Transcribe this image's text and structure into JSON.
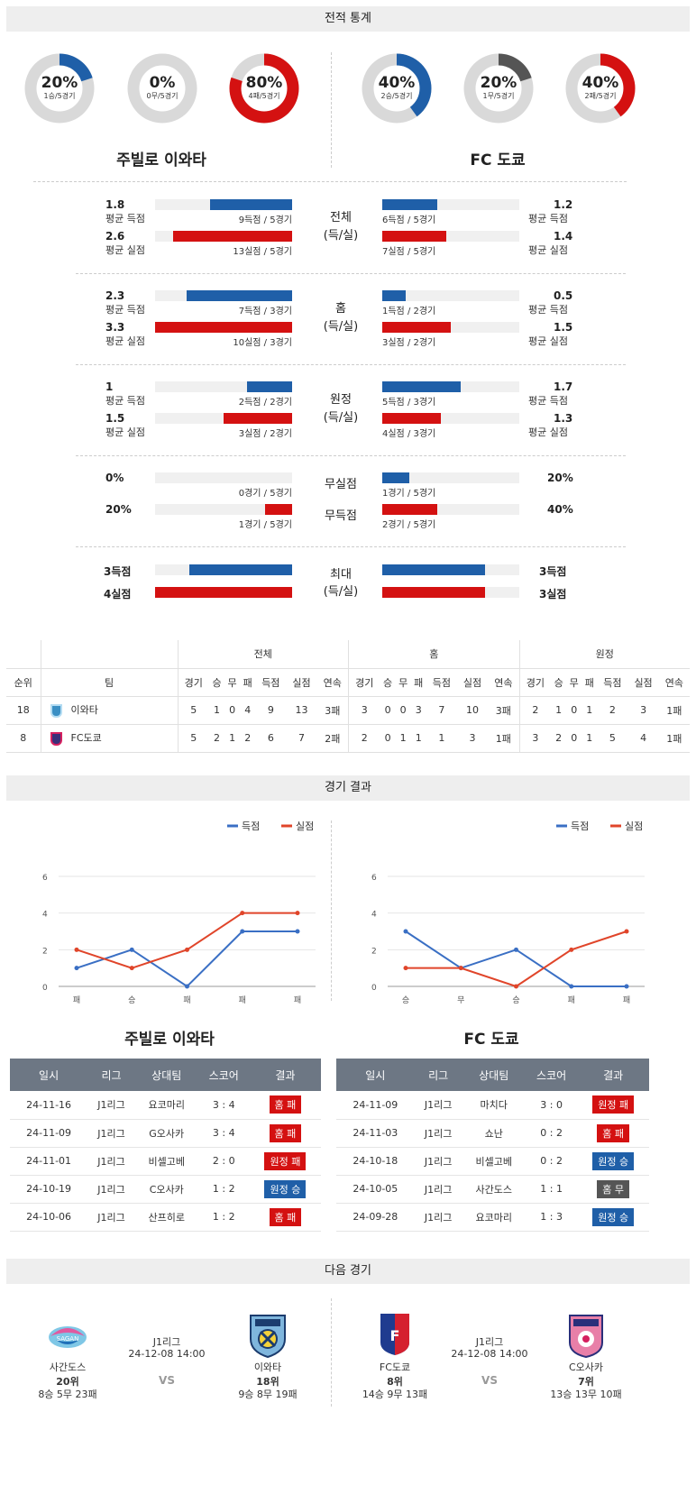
{
  "sections": {
    "record": "전적 통계",
    "results": "경기 결과",
    "next": "다음 경기"
  },
  "donuts": [
    {
      "pct": "20%",
      "sub": "1승/5경기",
      "value": 0.2,
      "color": "#1f5fa8"
    },
    {
      "pct": "0%",
      "sub": "0무/5경기",
      "value": 0.0,
      "color": "#555555"
    },
    {
      "pct": "80%",
      "sub": "4패/5경기",
      "value": 0.8,
      "color": "#d41111"
    },
    {
      "pct": "40%",
      "sub": "2승/5경기",
      "value": 0.4,
      "color": "#1f5fa8"
    },
    {
      "pct": "20%",
      "sub": "1무/5경기",
      "value": 0.2,
      "color": "#555555"
    },
    {
      "pct": "40%",
      "sub": "2패/5경기",
      "value": 0.4,
      "color": "#d41111"
    }
  ],
  "teams": {
    "left": "주빌로 이와타",
    "right": "FC 도쿄"
  },
  "stats": {
    "overall": {
      "label1": "전체",
      "label2": "(득/실)",
      "l_gf": "1.8",
      "l_gf_lbl": "평균 득점",
      "l_gf_cap": "9득점 / 5경기",
      "l_gf_v": 0.6,
      "l_ga": "2.6",
      "l_ga_lbl": "평균 실점",
      "l_ga_cap": "13실점 / 5경기",
      "l_ga_v": 0.87,
      "r_gf": "1.2",
      "r_gf_lbl": "평균 득점",
      "r_gf_cap": "6득점 / 5경기",
      "r_gf_v": 0.4,
      "r_ga": "1.4",
      "r_ga_lbl": "평균 실점",
      "r_ga_cap": "7실점 / 5경기",
      "r_ga_v": 0.47
    },
    "home": {
      "label1": "홈",
      "label2": "(득/실)",
      "l_gf": "2.3",
      "l_gf_lbl": "평균 득점",
      "l_gf_cap": "7득점 / 3경기",
      "l_gf_v": 0.77,
      "l_ga": "3.3",
      "l_ga_lbl": "평균 실점",
      "l_ga_cap": "10실점 / 3경기",
      "l_ga_v": 1.0,
      "r_gf": "0.5",
      "r_gf_lbl": "평균 득점",
      "r_gf_cap": "1득점 / 2경기",
      "r_gf_v": 0.17,
      "r_ga": "1.5",
      "r_ga_lbl": "평균 실점",
      "r_ga_cap": "3실점 / 2경기",
      "r_ga_v": 0.5
    },
    "away": {
      "label1": "원정",
      "label2": "(득/실)",
      "l_gf": "1",
      "l_gf_lbl": "평균 득점",
      "l_gf_cap": "2득점 / 2경기",
      "l_gf_v": 0.33,
      "l_ga": "1.5",
      "l_ga_lbl": "평균 실점",
      "l_ga_cap": "3실점 / 2경기",
      "l_ga_v": 0.5,
      "r_gf": "1.7",
      "r_gf_lbl": "평균 득점",
      "r_gf_cap": "5득점 / 3경기",
      "r_gf_v": 0.57,
      "r_ga": "1.3",
      "r_ga_lbl": "평균 실점",
      "r_ga_cap": "4실점 / 3경기",
      "r_ga_v": 0.43
    },
    "clean": {
      "label1": "무실점",
      "label2": "무득점",
      "l_cs": "0%",
      "l_cs_cap": "0경기 / 5경기",
      "l_cs_v": 0.0,
      "l_fs": "20%",
      "l_fs_cap": "1경기 / 5경기",
      "l_fs_v": 0.2,
      "r_cs": "20%",
      "r_cs_cap": "1경기 / 5경기",
      "r_cs_v": 0.2,
      "r_fs": "40%",
      "r_fs_cap": "2경기 / 5경기",
      "r_fs_v": 0.4
    },
    "max": {
      "label1": "최대",
      "label2": "(득/실)",
      "l_gf": "3득점",
      "l_gf_v": 0.75,
      "l_ga": "4실점",
      "l_ga_v": 1.0,
      "r_gf": "3득점",
      "r_gf_v": 0.75,
      "r_ga": "3실점",
      "r_ga_v": 0.75
    }
  },
  "standings": {
    "groups": [
      "전체",
      "홈",
      "원정"
    ],
    "headers": [
      "순위",
      "팀",
      "경기",
      "승",
      "무",
      "패",
      "득점",
      "실점",
      "연속",
      "경기",
      "승",
      "무",
      "패",
      "득점",
      "실점",
      "연속",
      "경기",
      "승",
      "무",
      "패",
      "득점",
      "실점",
      "연속"
    ],
    "rows": [
      [
        "18",
        "이와타",
        "5",
        "1",
        "0",
        "4",
        "9",
        "13",
        "3패",
        "3",
        "0",
        "0",
        "3",
        "7",
        "10",
        "3패",
        "2",
        "1",
        "0",
        "1",
        "2",
        "3",
        "1패"
      ],
      [
        "8",
        "FC도쿄",
        "5",
        "2",
        "1",
        "2",
        "6",
        "7",
        "2패",
        "2",
        "0",
        "1",
        "1",
        "1",
        "3",
        "1패",
        "3",
        "2",
        "0",
        "1",
        "5",
        "4",
        "1패"
      ]
    ]
  },
  "chart_data": [
    {
      "type": "line",
      "categories": [
        "패",
        "승",
        "패",
        "패",
        "패"
      ],
      "ylim": [
        0,
        6
      ],
      "yticks": [
        "0",
        "2",
        "4",
        "6"
      ],
      "series": [
        {
          "name": "득점",
          "color": "#3a6fc4",
          "values": [
            1,
            2,
            0,
            3,
            3
          ]
        },
        {
          "name": "실점",
          "color": "#e0452a",
          "values": [
            2,
            1,
            2,
            4,
            4
          ]
        }
      ]
    },
    {
      "type": "line",
      "categories": [
        "승",
        "무",
        "승",
        "패",
        "패"
      ],
      "ylim": [
        0,
        6
      ],
      "yticks": [
        "0",
        "2",
        "4",
        "6"
      ],
      "series": [
        {
          "name": "득점",
          "color": "#3a6fc4",
          "values": [
            3,
            1,
            2,
            0,
            0
          ]
        },
        {
          "name": "실점",
          "color": "#e0452a",
          "values": [
            1,
            1,
            0,
            2,
            3
          ]
        }
      ]
    }
  ],
  "results": {
    "headers": [
      "일시",
      "리그",
      "상대팀",
      "스코어",
      "결과"
    ],
    "left": [
      [
        "24-11-16",
        "J1리그",
        "요코마리",
        "3 : 4",
        "홈 패",
        "red"
      ],
      [
        "24-11-09",
        "J1리그",
        "G오사카",
        "3 : 4",
        "홈 패",
        "red"
      ],
      [
        "24-11-01",
        "J1리그",
        "비셀고베",
        "2 : 0",
        "원정 패",
        "red"
      ],
      [
        "24-10-19",
        "J1리그",
        "C오사카",
        "1 : 2",
        "원정 승",
        "blue"
      ],
      [
        "24-10-06",
        "J1리그",
        "산프히로",
        "1 : 2",
        "홈 패",
        "red"
      ]
    ],
    "right": [
      [
        "24-11-09",
        "J1리그",
        "마치다",
        "3 : 0",
        "원정 패",
        "red"
      ],
      [
        "24-11-03",
        "J1리그",
        "쇼난",
        "0 : 2",
        "홈 패",
        "red"
      ],
      [
        "24-10-18",
        "J1리그",
        "비셀고베",
        "0 : 2",
        "원정 승",
        "blue"
      ],
      [
        "24-10-05",
        "J1리그",
        "사간도스",
        "1 : 1",
        "홈 무",
        "gray"
      ],
      [
        "24-09-28",
        "J1리그",
        "요코마리",
        "1 : 3",
        "원정 승",
        "blue"
      ]
    ]
  },
  "next": [
    {
      "home": "사간도스",
      "home_rank": "20위",
      "home_rec": "8승 5무 23패",
      "away": "이와타",
      "away_rank": "18위",
      "away_rec": "9승 8무 19패",
      "league": "J1리그",
      "date": "24-12-08 14:00",
      "vs": "VS"
    },
    {
      "home": "FC도쿄",
      "home_rank": "8위",
      "home_rec": "14승 9무 13패",
      "away": "C오사카",
      "away_rank": "7위",
      "away_rec": "13승 13무 10패",
      "league": "J1리그",
      "date": "24-12-08 14:00",
      "vs": "VS"
    }
  ]
}
